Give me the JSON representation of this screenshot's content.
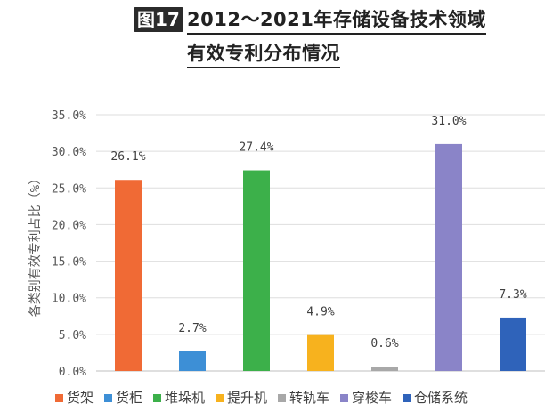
{
  "title": {
    "badge": "图17",
    "line1": "2012～2021年存储设备技术领域",
    "line2": "有效专利分布情况"
  },
  "chart_data": {
    "type": "bar",
    "categories": [
      "货架",
      "货柜",
      "堆垛机",
      "提升机",
      "转轨车",
      "穿梭车",
      "仓储系统"
    ],
    "values": [
      26.1,
      2.7,
      27.4,
      4.9,
      0.6,
      31.0,
      7.3
    ],
    "value_labels": [
      "26.1%",
      "2.7%",
      "27.4%",
      "4.9%",
      "0.6%",
      "31.0%",
      "7.3%"
    ],
    "colors": [
      "#f06a35",
      "#3d8fd6",
      "#3cb04a",
      "#f7b21e",
      "#a8a8a8",
      "#8a84c8",
      "#2f63ba"
    ],
    "ylabel": "各类别有效专利占比（%）",
    "yticks": [
      "0.0%",
      "5.0%",
      "10.0%",
      "15.0%",
      "20.0%",
      "25.0%",
      "30.0%",
      "35.0%"
    ],
    "ylim": [
      0,
      35
    ],
    "legend_position": "bottom"
  }
}
